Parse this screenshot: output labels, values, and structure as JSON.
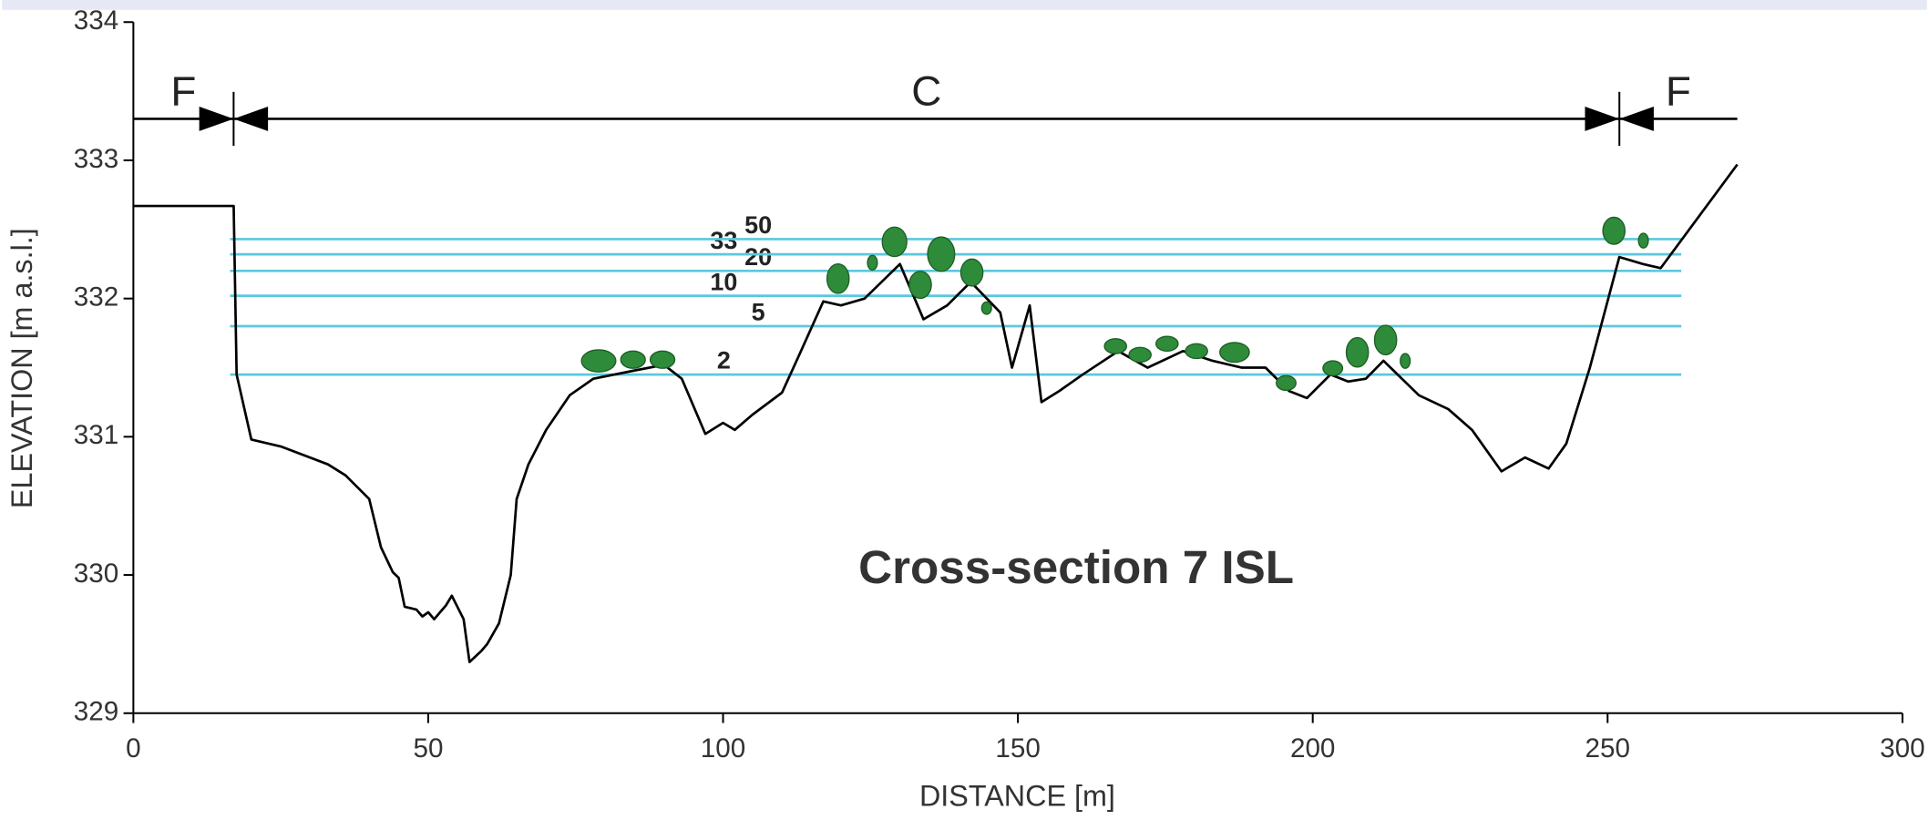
{
  "chart_data": {
    "type": "line",
    "title": "Cross-section 7 ISL",
    "x_label": "DISTANCE [m]",
    "y_label": "ELEVATION  [m a.s.l.]",
    "color": "#000000",
    "x": [
      0,
      17,
      17.5,
      20,
      25,
      33,
      36,
      40,
      42,
      44,
      45,
      46,
      48,
      49,
      50,
      51,
      53,
      54,
      56,
      57,
      59,
      60,
      62,
      64,
      65,
      67,
      70,
      74,
      78,
      85,
      90,
      93,
      97,
      100,
      102,
      105,
      110,
      113,
      117,
      120,
      124,
      130,
      134,
      138,
      142,
      147,
      149,
      152,
      154,
      157,
      161,
      167,
      172,
      178,
      183,
      188,
      192,
      196,
      199,
      203,
      206,
      209,
      212,
      218,
      223,
      227,
      232,
      236,
      240,
      243,
      247,
      252,
      256,
      259,
      272
    ],
    "values": [
      332.67,
      332.67,
      331.45,
      330.98,
      330.93,
      330.8,
      330.72,
      330.55,
      330.2,
      330.02,
      329.98,
      329.77,
      329.75,
      329.7,
      329.73,
      329.68,
      329.78,
      329.85,
      329.68,
      329.37,
      329.45,
      329.5,
      329.65,
      330.0,
      330.55,
      330.8,
      331.05,
      331.3,
      331.42,
      331.48,
      331.52,
      331.42,
      331.02,
      331.1,
      331.05,
      331.16,
      331.32,
      331.6,
      331.98,
      331.95,
      332.0,
      332.25,
      331.85,
      331.95,
      332.12,
      331.9,
      331.5,
      331.95,
      331.25,
      331.33,
      331.45,
      331.62,
      331.5,
      331.62,
      331.55,
      331.5,
      331.5,
      331.33,
      331.28,
      331.45,
      331.4,
      331.42,
      331.55,
      331.3,
      331.2,
      331.05,
      330.75,
      330.85,
      330.77,
      330.95,
      331.5,
      332.3,
      332.25,
      332.22,
      332.97
    ],
    "water_levels": [
      {
        "label": "2",
        "value": 331.45
      },
      {
        "label": "5",
        "value": 331.8
      },
      {
        "label": "10",
        "value": 332.02
      },
      {
        "label": "20",
        "value": 332.2
      },
      {
        "label": "33",
        "value": 332.32
      },
      {
        "label": "50",
        "value": 332.43
      }
    ],
    "water_level_extent": [
      16.4,
      262.5
    ],
    "water_level_color": "#5bc8dc",
    "zones": [
      {
        "label": "F",
        "from": 0,
        "to": 17
      },
      {
        "label": "C",
        "from": 17,
        "to": 252
      },
      {
        "label": "F",
        "from": 252,
        "to": 272
      }
    ],
    "zone_elevation": 333.3,
    "xlim": [
      0,
      300
    ],
    "xticks": [
      0,
      50,
      100,
      150,
      200,
      250,
      300
    ],
    "ylim": [
      329,
      334
    ],
    "yticks": [
      329,
      330,
      331,
      332,
      333,
      334
    ]
  }
}
